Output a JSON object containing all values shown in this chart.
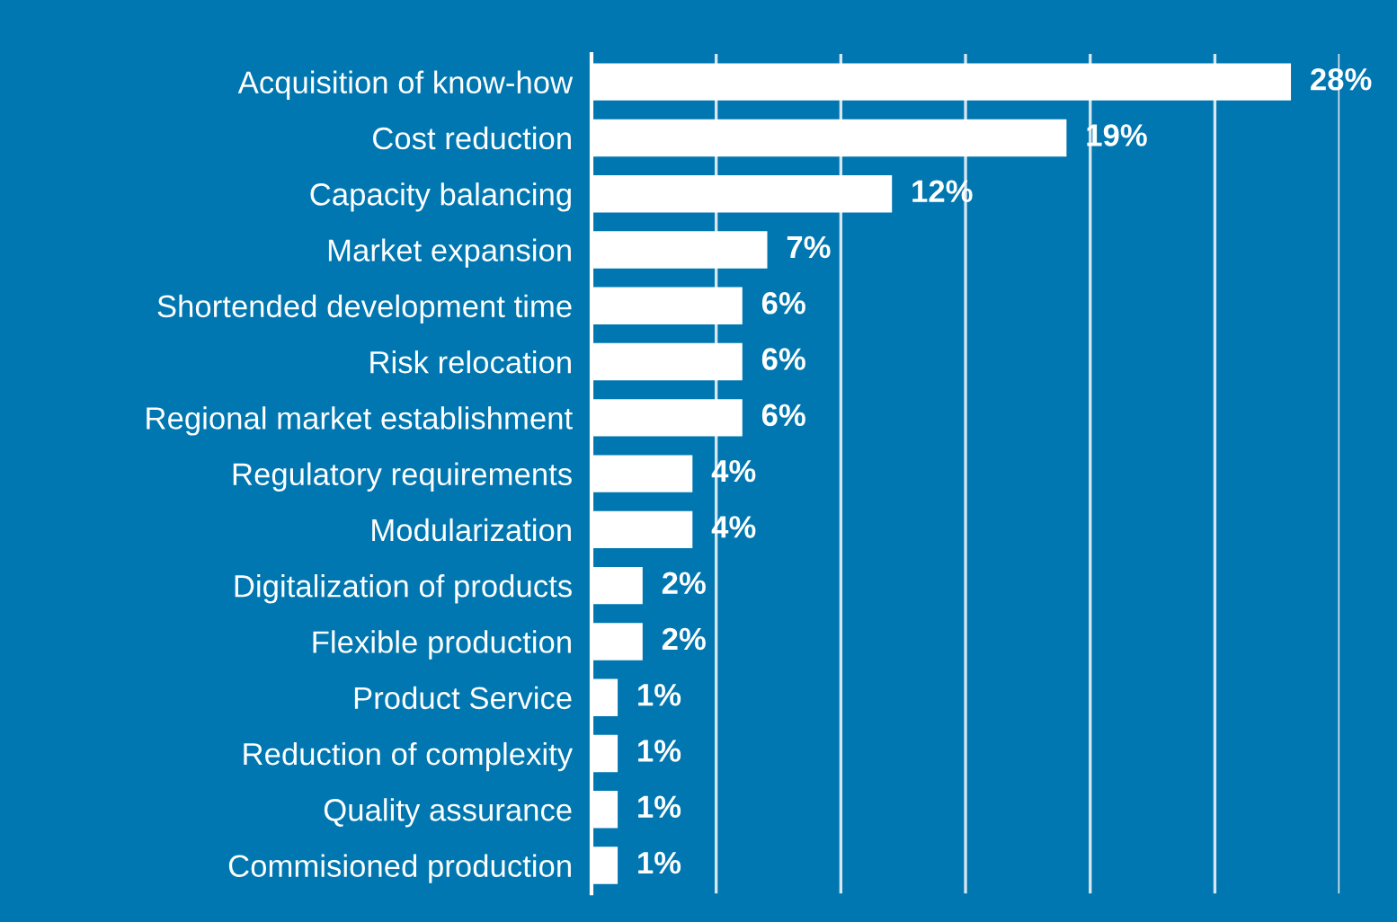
{
  "chart_data": {
    "type": "bar",
    "orientation": "horizontal",
    "categories": [
      "Acquisition of know-how",
      "Cost reduction",
      "Capacity balancing",
      "Market expansion",
      "Shortended development time",
      "Risk relocation",
      "Regional market establishment",
      "Regulatory requirements",
      "Modularization",
      "Digitalization of products",
      "Flexible production",
      "Product Service",
      "Reduction of complexity",
      "Quality assurance",
      "Commisioned production"
    ],
    "values": [
      28,
      19,
      12,
      7,
      6,
      6,
      6,
      4,
      4,
      2,
      2,
      1,
      1,
      1,
      1
    ],
    "value_labels": [
      "28%",
      "19%",
      "12%",
      "7%",
      "6%",
      "6%",
      "6%",
      "4%",
      "4%",
      "2%",
      "2%",
      "1%",
      "1%",
      "1%",
      "1%"
    ],
    "color": "#ffffff",
    "xlim": [
      0,
      30
    ],
    "xticks": [
      {
        "value": 5,
        "label": null
      },
      {
        "value": 10,
        "label": null
      },
      {
        "value": 15,
        "label": null
      },
      {
        "value": 20,
        "label": null
      },
      {
        "value": 25,
        "label": null
      },
      {
        "value": 30,
        "label": null
      }
    ],
    "tick_labels": "y",
    "grid": "x",
    "legend": false
  }
}
